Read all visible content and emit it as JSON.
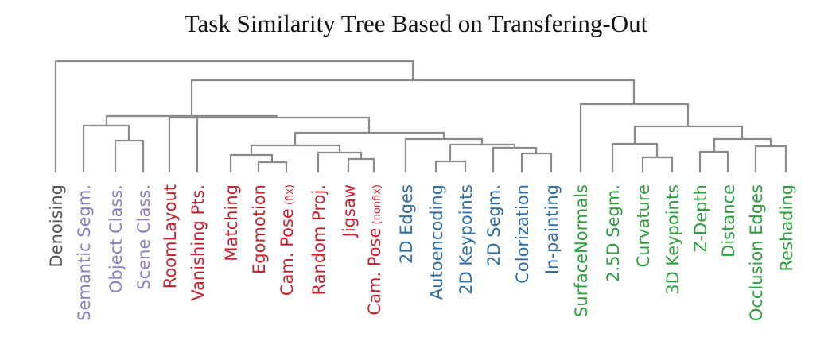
{
  "title": "Task Similarity Tree Based on Transfering-Out",
  "colors": {
    "branch": "#8a8a8a",
    "groups": {
      "gray": "#555555",
      "purple": "#8e7cc3",
      "red": "#c8202f",
      "blue": "#2f6ea5",
      "green": "#2e9e3e"
    }
  },
  "leaves": [
    {
      "label": "Denoising",
      "group": "gray"
    },
    {
      "label": "Semantic Segm.",
      "group": "purple"
    },
    {
      "label": "Object Class.",
      "group": "purple"
    },
    {
      "label": "Scene Class.",
      "group": "purple"
    },
    {
      "label": "RoomLayout",
      "group": "red"
    },
    {
      "label": "Vanishing Pts.",
      "group": "red"
    },
    {
      "label": "Matching",
      "group": "red"
    },
    {
      "label": "Egomotion",
      "group": "red"
    },
    {
      "label": "Cam. Pose",
      "suffix": "(fix)",
      "group": "red"
    },
    {
      "label": "Random Proj.",
      "group": "red"
    },
    {
      "label": "Jigsaw",
      "group": "red"
    },
    {
      "label": "Cam. Pose",
      "suffix": "(nonfix)",
      "group": "red"
    },
    {
      "label": "2D Edges",
      "group": "blue"
    },
    {
      "label": "Autoencoding",
      "group": "blue"
    },
    {
      "label": "2D Keypoints",
      "group": "blue"
    },
    {
      "label": "2D Segm.",
      "group": "blue"
    },
    {
      "label": "Colorization",
      "group": "blue"
    },
    {
      "label": "In-painting",
      "group": "blue"
    },
    {
      "label": "SurfaceNormals",
      "group": "green"
    },
    {
      "label": "2.5D Segm.",
      "group": "green"
    },
    {
      "label": "Curvature",
      "group": "green"
    },
    {
      "label": "3D Keypoints",
      "group": "green"
    },
    {
      "label": "Z-Depth",
      "group": "green"
    },
    {
      "label": "Distance",
      "group": "green"
    },
    {
      "label": "Occlusion Edges",
      "group": "green"
    },
    {
      "label": "Reshading",
      "group": "green"
    }
  ]
}
